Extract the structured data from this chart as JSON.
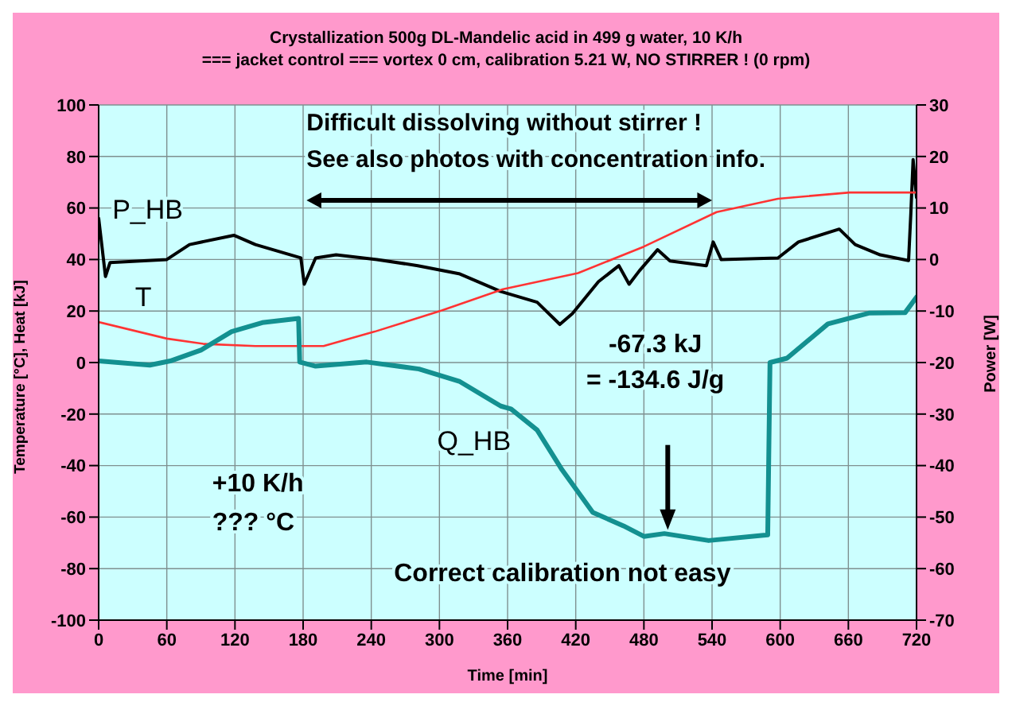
{
  "chart_data": {
    "type": "line",
    "title": "Crystallization 500g DL-Mandelic acid in 499 g water, 10 K/h",
    "subtitle": "=== jacket control ===  vortex 0 cm, calibration 5.21 W, NO STIRRER ! (0 rpm)",
    "xlabel": "Time [min]",
    "ylabel": "Temperature [°C], Heat [kJ]",
    "y2label": "Power [W]",
    "xlim": [
      0,
      720
    ],
    "xticks": [
      0,
      60,
      120,
      180,
      240,
      300,
      360,
      420,
      480,
      540,
      600,
      660,
      720
    ],
    "ylim": [
      -100,
      100
    ],
    "yticks": [
      -100,
      -80,
      -60,
      -40,
      -20,
      0,
      20,
      40,
      60,
      80,
      100
    ],
    "y2lim": [
      -70,
      30
    ],
    "y2ticks": [
      -70,
      -60,
      -50,
      -40,
      -30,
      -20,
      -10,
      0,
      10,
      20,
      30
    ],
    "grid": true,
    "legend": false,
    "annotations": [
      "Difficult dissolving without stirrer !",
      "See also photos with concentration info.",
      "-67.3 kJ",
      "= -134.6 J/g",
      "+10 K/h",
      "??? °C",
      "Correct calibration not easy"
    ],
    "series": [
      {
        "name": "P_HB",
        "color": "#000000",
        "axis": "y2",
        "x": [
          0,
          6,
          10,
          60,
          80,
          119,
          138,
          178,
          181,
          191,
          209,
          245,
          281,
          318,
          354,
          386,
          406,
          417,
          440,
          458,
          467,
          476,
          492,
          503,
          535,
          541,
          548,
          598,
          616,
          652,
          666,
          688,
          713,
          715,
          717,
          720
        ],
        "values": [
          8,
          -3.3,
          -0.6,
          0,
          2.9,
          4.7,
          2.9,
          0.3,
          -4.8,
          0.3,
          0.9,
          0,
          -1.2,
          -2.8,
          -6.2,
          -8.3,
          -12.6,
          -10.5,
          -4.3,
          -1.2,
          -4.8,
          -2.2,
          1.9,
          -0.3,
          -1.2,
          3.4,
          0,
          0.3,
          3.4,
          5.9,
          2.9,
          0.9,
          -0.2,
          9,
          19.4,
          12
        ]
      },
      {
        "name": "T",
        "color": "#ff3333",
        "x": [
          0,
          60,
          93,
          138,
          198,
          243,
          302,
          356,
          422,
          480,
          544,
          598,
          661,
          720
        ],
        "values": [
          15.7,
          9.3,
          7.2,
          6.4,
          6.4,
          12,
          20.2,
          28.5,
          34.7,
          45,
          58.4,
          63.6,
          66,
          66
        ]
      },
      {
        "name": "Q_HB",
        "color": "#139090",
        "x": [
          0,
          45,
          63,
          90,
          117,
          144,
          176,
          177,
          191,
          236,
          282,
          318,
          354,
          363,
          386,
          408,
          435,
          462,
          480,
          498,
          537,
          589,
          591,
          606,
          642,
          678,
          710,
          720
        ],
        "values": [
          0.6,
          -1,
          0.6,
          4.8,
          12,
          15.5,
          17.1,
          0.2,
          -1.4,
          0.2,
          -2.5,
          -7.4,
          -16.9,
          -18,
          -26.2,
          -41.7,
          -58.2,
          -63.4,
          -67.5,
          -66.4,
          -69.1,
          -66.9,
          0,
          1.7,
          15,
          19.2,
          19.4,
          25.4
        ]
      }
    ]
  }
}
